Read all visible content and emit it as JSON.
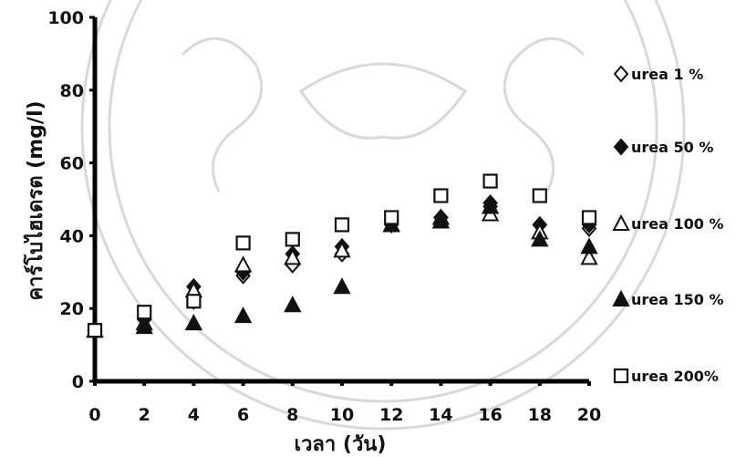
{
  "chart_data": {
    "type": "scatter",
    "title": "",
    "xlabel": "เวลา (วัน)",
    "ylabel": "คาร์โบไฮเดรต (mg/l)",
    "xlim": [
      0,
      20
    ],
    "ylim": [
      0,
      100
    ],
    "xticks": [
      "0",
      "2",
      "4",
      "6",
      "8",
      "10",
      "12",
      "14",
      "16",
      "18",
      "20"
    ],
    "yticks": [
      "0",
      "20",
      "40",
      "60",
      "80",
      "100"
    ],
    "grid": false,
    "legend_position": "right",
    "x": [
      0,
      2,
      4,
      6,
      8,
      10,
      12,
      14,
      16,
      18,
      20
    ],
    "series": [
      {
        "name": "urea 1 %",
        "marker": "diamond-open",
        "values": [
          14,
          17,
          22,
          29,
          32,
          35,
          43,
          45,
          48,
          43,
          42
        ]
      },
      {
        "name": "urea 50 %",
        "marker": "diamond-filled",
        "values": [
          14,
          17,
          26,
          30,
          35,
          37,
          44,
          45,
          49,
          43,
          43
        ]
      },
      {
        "name": "urea 100 %",
        "marker": "triangle-open",
        "values": [
          14,
          16,
          25,
          32,
          34,
          36,
          43,
          45,
          46,
          41,
          34
        ]
      },
      {
        "name": "urea 150 %",
        "marker": "triangle-filled",
        "values": [
          14,
          15,
          16,
          18,
          21,
          26,
          43,
          44,
          48,
          39,
          37
        ]
      },
      {
        "name": "urea 200%",
        "marker": "square-open",
        "values": [
          14,
          19,
          22,
          38,
          39,
          43,
          45,
          51,
          55,
          51,
          45
        ]
      }
    ]
  },
  "colors": {
    "marker": "#111111",
    "axis": "#000000"
  }
}
